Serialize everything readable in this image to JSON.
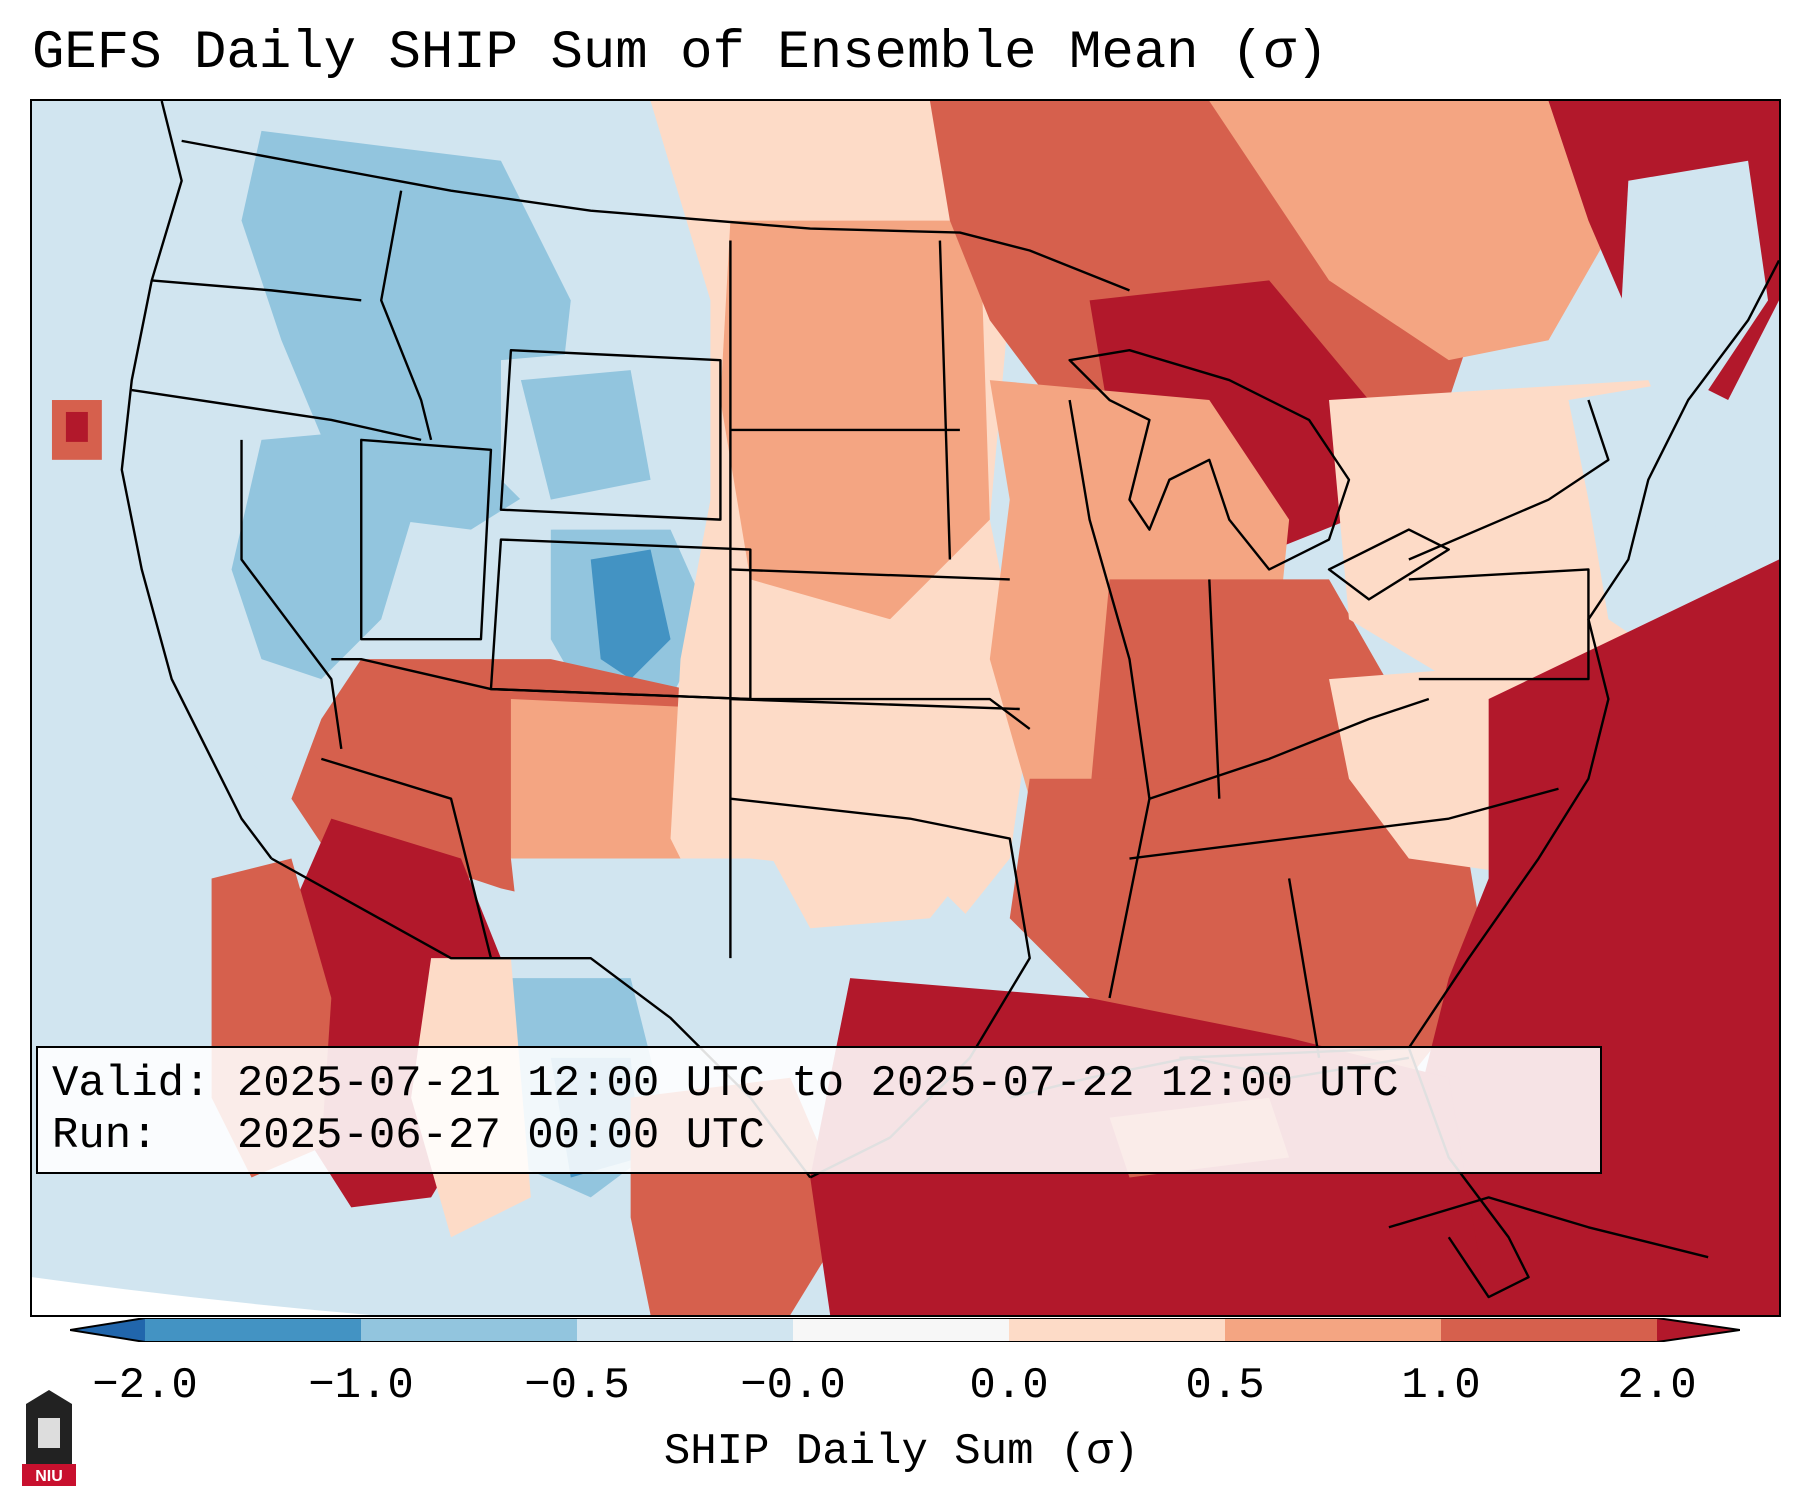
{
  "title": "GEFS Daily SHIP Sum of Ensemble Mean (σ)",
  "info": {
    "valid_line": "Valid: 2025-07-21 12:00 UTC to 2025-07-22 12:00 UTC",
    "run_line": "Run:   2025-06-27 00:00 UTC"
  },
  "colorbar": {
    "label": "SHIP Daily Sum (σ)",
    "ticks": [
      "−2.0",
      "−1.0",
      "−0.5",
      "−0.0",
      "0.0",
      "0.5",
      "1.0",
      "2.0"
    ],
    "bins": [
      {
        "color": "#2166ac"
      },
      {
        "color": "#4393c3"
      },
      {
        "color": "#92c5de"
      },
      {
        "color": "#d1e5f0"
      },
      {
        "color": "#f7f7f7"
      },
      {
        "color": "#fddbc7"
      },
      {
        "color": "#f4a582"
      },
      {
        "color": "#d6604d"
      },
      {
        "color": "#b2182b"
      }
    ]
  },
  "logo": {
    "text": "NIU"
  }
}
